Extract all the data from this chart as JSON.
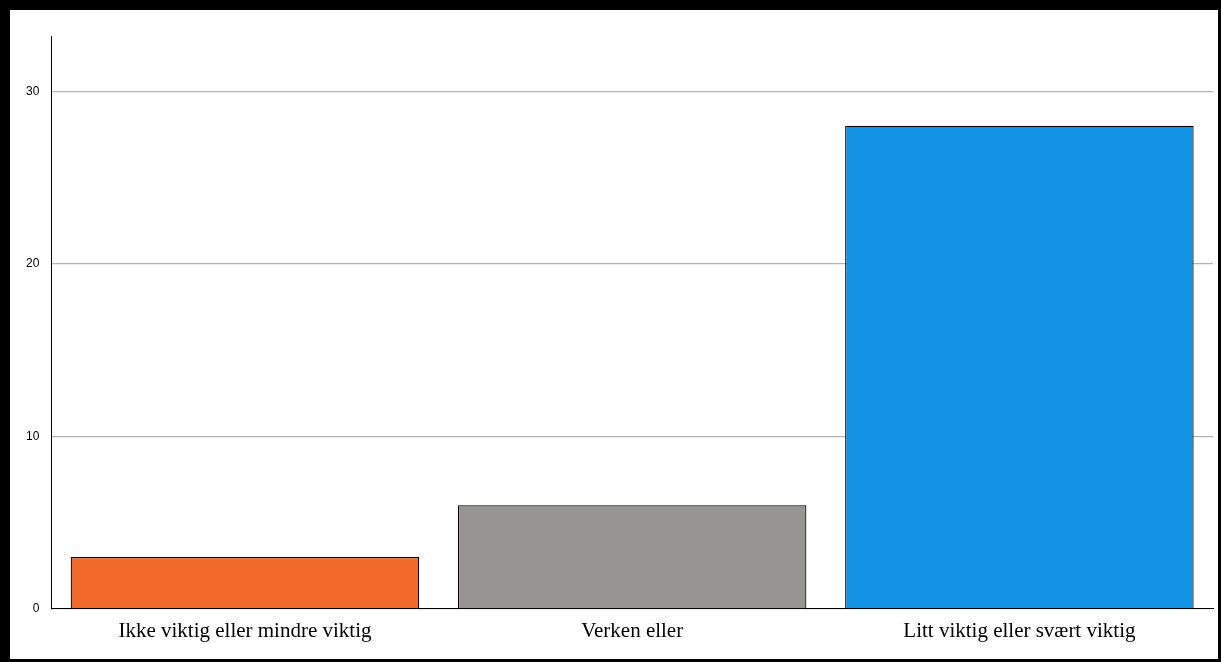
{
  "chart_data": {
    "type": "bar",
    "categories": [
      "Ikke viktig eller mindre viktig",
      "Verken eller",
      "Litt viktig eller svært viktig"
    ],
    "values": [
      3,
      6,
      28
    ],
    "colors": [
      "#f26b2d",
      "#979594",
      "#1492e6"
    ],
    "ylim": [
      0,
      33.2
    ],
    "yticks": [
      0,
      10,
      20,
      30
    ],
    "grid": "y",
    "legend": false
  }
}
